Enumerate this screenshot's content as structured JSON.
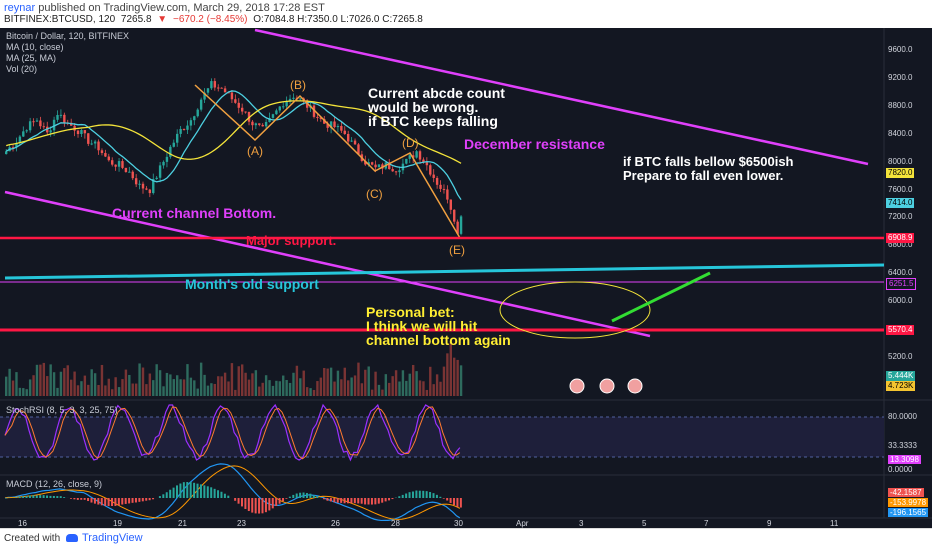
{
  "header": {
    "user": "reynar",
    "published": "published on TradingView.com, March 29, 2018 17:28 EST",
    "symbol": "BITFINEX:BTCUSD, 120",
    "last": "7265.8",
    "change": "−670.2 (−8.45%)",
    "ohlc": "O:7084.8 H:7350.0 L:7026.0 C:7265.8"
  },
  "legend": {
    "title": "Bitcoin / Dollar, 120, BITFINEX",
    "ma10": "MA (10, close)",
    "ma25": "MA (25, MA)",
    "vol": "Vol (20)",
    "stoch": "StochRSI (8, 5, 3, 3, 25, 75)",
    "macd": "MACD (12, 26, close, 9)"
  },
  "annotations": {
    "abcde_1": "Current abcde count",
    "abcde_2": "would be wrong.",
    "abcde_3": "if BTC keeps falling",
    "dec_res": "December resistance",
    "fall_1": "if BTC falls bellow $6500ish",
    "fall_2": "Prepare to fall even lower.",
    "channel_bottom": "Current channel Bottom.",
    "major_support": "Major support.",
    "month_support": "Month's old support",
    "bet_1": "Personal bet:",
    "bet_2": "I think we will hit",
    "bet_3": "channel bottom again",
    "wave_a": "(A)",
    "wave_b": "(B)",
    "wave_c": "(C)",
    "wave_d": "(D)",
    "wave_e": "(E)"
  },
  "price_axis": [
    "9600.0",
    "9200.0",
    "8800.0",
    "8400.0",
    "8000.0",
    "7600.0",
    "7200.0",
    "6800.0",
    "6400.0",
    "6000.0",
    "5600.0",
    "5200.0"
  ],
  "price_tags": {
    "ma25": "7820.0",
    "ma10": "7414.0",
    "major": "6908.9",
    "month": "6251.5",
    "low": "5570.4",
    "vol1": "5.444K",
    "vol2": "4.723K"
  },
  "stoch_axis": [
    "80.0000",
    "33.3333",
    "13.3098",
    "0.0000"
  ],
  "macd_axis": [
    "-42.1587",
    "-153.9978",
    "-196.1565"
  ],
  "time_axis": [
    "16",
    "19",
    "21",
    "23",
    "26",
    "28",
    "30",
    "Apr",
    "3",
    "5",
    "7",
    "9",
    "11"
  ],
  "footer": {
    "created": "Created with",
    "brand": "TradingView"
  },
  "colors": {
    "background": "#131722",
    "candle_up": "#26a69a",
    "candle_down": "#ef5350",
    "ma10": "#4dd0e1",
    "ma25": "#f4e43a",
    "channel": "#e040fb",
    "support_red": "#ff1744",
    "support_cyan": "#26c6da",
    "abcde_orange": "#f0a040",
    "annotation_white": "#ffffff",
    "annotation_yellow": "#ffee33",
    "annotation_green": "#33dd33"
  },
  "chart_data": {
    "type": "candlestick",
    "symbol": "BTCUSD",
    "price_range": [
      5000,
      9900
    ],
    "close_path": [
      [
        0,
        8150
      ],
      [
        3,
        8300
      ],
      [
        6,
        8500
      ],
      [
        9,
        8600
      ],
      [
        12,
        8400
      ],
      [
        15,
        8700
      ],
      [
        18,
        8550
      ],
      [
        21,
        8450
      ],
      [
        24,
        8300
      ],
      [
        27,
        8200
      ],
      [
        30,
        8000
      ],
      [
        33,
        7950
      ],
      [
        36,
        7850
      ],
      [
        39,
        7650
      ],
      [
        42,
        7600
      ],
      [
        45,
        7900
      ],
      [
        48,
        8200
      ],
      [
        51,
        8450
      ],
      [
        54,
        8600
      ],
      [
        57,
        8900
      ],
      [
        60,
        9100
      ],
      [
        63,
        9050
      ],
      [
        66,
        8900
      ],
      [
        69,
        8750
      ],
      [
        72,
        8550
      ],
      [
        75,
        8450
      ],
      [
        78,
        8650
      ],
      [
        81,
        8850
      ],
      [
        84,
        8950
      ],
      [
        87,
        8850
      ],
      [
        90,
        8700
      ],
      [
        93,
        8550
      ],
      [
        96,
        8500
      ],
      [
        99,
        8400
      ],
      [
        102,
        8200
      ],
      [
        105,
        8000
      ],
      [
        108,
        7900
      ],
      [
        111,
        7950
      ],
      [
        114,
        7900
      ],
      [
        117,
        8000
      ],
      [
        120,
        8150
      ],
      [
        123,
        7950
      ],
      [
        126,
        7700
      ],
      [
        129,
        7500
      ],
      [
        131,
        7200
      ],
      [
        132,
        6950
      ],
      [
        133,
        7265
      ]
    ],
    "levels": {
      "major_support": 6908.9,
      "month_support": 6251.5,
      "low_support": 5570.4
    }
  }
}
